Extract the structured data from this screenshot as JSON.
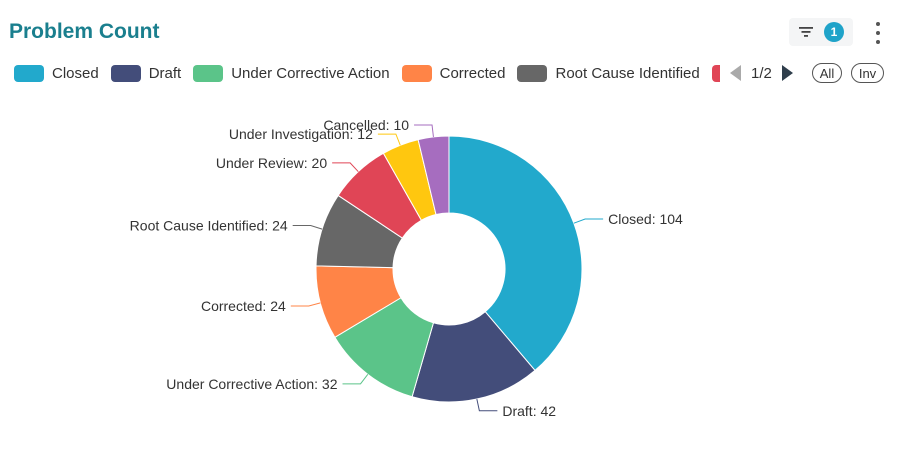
{
  "header": {
    "title": "Problem Count",
    "filter_count": "1"
  },
  "legend": {
    "page_text": "1/2",
    "all_label": "All",
    "inv_label": "Inv"
  },
  "chart_data": {
    "type": "pie",
    "variant": "donut",
    "title": "Problem Count",
    "legend_position": "top",
    "slices": [
      {
        "name": "Closed",
        "value": 104,
        "color": "#22a9cc",
        "label": "Closed: 104"
      },
      {
        "name": "Draft",
        "value": 42,
        "color": "#434d7a",
        "label": "Draft: 42"
      },
      {
        "name": "Under Corrective Action",
        "value": 32,
        "color": "#5bc489",
        "label": "Under Corrective Action: 32"
      },
      {
        "name": "Corrected",
        "value": 24,
        "color": "#ff8447",
        "label": "Corrected: 24"
      },
      {
        "name": "Root Cause Identified",
        "value": 24,
        "color": "#676767",
        "label": "Root Cause Identified: 24"
      },
      {
        "name": "Under Review",
        "value": 20,
        "color": "#e04556",
        "label": "Under Review: 20"
      },
      {
        "name": "Under Investigation",
        "value": 12,
        "color": "#ffc70f",
        "label": "Under Investigation: 12"
      },
      {
        "name": "Cancelled",
        "value": 10,
        "color": "#a66dbf",
        "label": "Cancelled: 10"
      }
    ]
  }
}
